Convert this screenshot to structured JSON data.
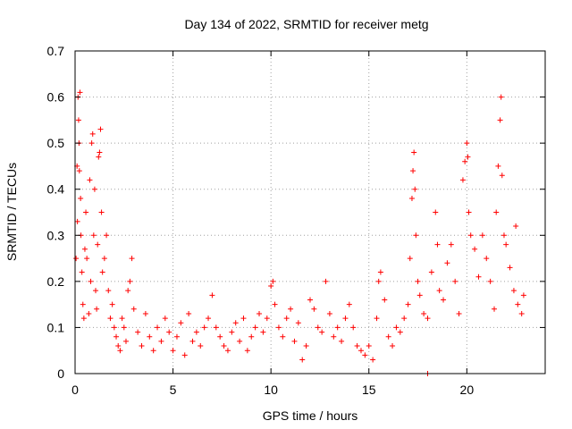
{
  "chart_data": {
    "type": "scatter",
    "title": "Day 134 of 2022, SRMTID for receiver metg",
    "xlabel": "GPS time / hours",
    "ylabel": "SRMTID / TECUs",
    "xlim": [
      0,
      24
    ],
    "ylim": [
      0,
      0.7
    ],
    "xticks": [
      0,
      5,
      10,
      15,
      20
    ],
    "yticks": [
      0,
      0.1,
      0.2,
      0.3,
      0.4,
      0.5,
      0.6,
      0.7
    ],
    "xtick_labels": [
      "0",
      "5",
      "10",
      "15",
      "20"
    ],
    "ytick_labels": [
      "0",
      "0.1",
      "0.2",
      "0.3",
      "0.4",
      "0.5",
      "0.6",
      "0.7"
    ],
    "grid": true,
    "marker": "+",
    "color": "#ff0000",
    "series": [
      {
        "name": "metg",
        "points": [
          [
            0.05,
            0.25
          ],
          [
            0.1,
            0.45
          ],
          [
            0.12,
            0.33
          ],
          [
            0.15,
            0.6
          ],
          [
            0.18,
            0.55
          ],
          [
            0.2,
            0.5
          ],
          [
            0.22,
            0.44
          ],
          [
            0.25,
            0.61
          ],
          [
            0.28,
            0.38
          ],
          [
            0.3,
            0.3
          ],
          [
            0.35,
            0.22
          ],
          [
            0.4,
            0.15
          ],
          [
            0.45,
            0.12
          ],
          [
            0.5,
            0.27
          ],
          [
            0.55,
            0.35
          ],
          [
            0.6,
            0.25
          ],
          [
            0.7,
            0.13
          ],
          [
            0.75,
            0.42
          ],
          [
            0.8,
            0.2
          ],
          [
            0.85,
            0.5
          ],
          [
            0.9,
            0.52
          ],
          [
            0.95,
            0.3
          ],
          [
            1.0,
            0.4
          ],
          [
            1.05,
            0.18
          ],
          [
            1.1,
            0.14
          ],
          [
            1.15,
            0.28
          ],
          [
            1.2,
            0.47
          ],
          [
            1.25,
            0.48
          ],
          [
            1.3,
            0.53
          ],
          [
            1.35,
            0.35
          ],
          [
            1.4,
            0.22
          ],
          [
            1.5,
            0.25
          ],
          [
            1.6,
            0.3
          ],
          [
            1.7,
            0.18
          ],
          [
            1.8,
            0.12
          ],
          [
            1.9,
            0.15
          ],
          [
            2.0,
            0.1
          ],
          [
            2.1,
            0.08
          ],
          [
            2.2,
            0.06
          ],
          [
            2.3,
            0.05
          ],
          [
            2.4,
            0.12
          ],
          [
            2.5,
            0.1
          ],
          [
            2.6,
            0.07
          ],
          [
            2.7,
            0.18
          ],
          [
            2.8,
            0.2
          ],
          [
            2.9,
            0.25
          ],
          [
            3.0,
            0.14
          ],
          [
            3.2,
            0.09
          ],
          [
            3.4,
            0.06
          ],
          [
            3.6,
            0.13
          ],
          [
            3.8,
            0.08
          ],
          [
            4.0,
            0.05
          ],
          [
            4.2,
            0.1
          ],
          [
            4.4,
            0.07
          ],
          [
            4.6,
            0.12
          ],
          [
            4.8,
            0.09
          ],
          [
            5.0,
            0.05
          ],
          [
            5.2,
            0.08
          ],
          [
            5.4,
            0.11
          ],
          [
            5.6,
            0.04
          ],
          [
            5.8,
            0.13
          ],
          [
            6.0,
            0.07
          ],
          [
            6.2,
            0.09
          ],
          [
            6.4,
            0.06
          ],
          [
            6.6,
            0.1
          ],
          [
            6.8,
            0.12
          ],
          [
            7.0,
            0.17
          ],
          [
            7.2,
            0.1
          ],
          [
            7.4,
            0.08
          ],
          [
            7.6,
            0.06
          ],
          [
            7.8,
            0.05
          ],
          [
            8.0,
            0.09
          ],
          [
            8.2,
            0.11
          ],
          [
            8.4,
            0.07
          ],
          [
            8.6,
            0.12
          ],
          [
            8.8,
            0.05
          ],
          [
            9.0,
            0.08
          ],
          [
            9.2,
            0.1
          ],
          [
            9.4,
            0.13
          ],
          [
            9.6,
            0.09
          ],
          [
            9.8,
            0.12
          ],
          [
            10.0,
            0.19
          ],
          [
            10.1,
            0.2
          ],
          [
            10.2,
            0.15
          ],
          [
            10.4,
            0.1
          ],
          [
            10.6,
            0.08
          ],
          [
            10.8,
            0.12
          ],
          [
            11.0,
            0.14
          ],
          [
            11.2,
            0.07
          ],
          [
            11.4,
            0.11
          ],
          [
            11.6,
            0.03
          ],
          [
            11.8,
            0.06
          ],
          [
            12.0,
            0.16
          ],
          [
            12.2,
            0.14
          ],
          [
            12.4,
            0.1
          ],
          [
            12.6,
            0.09
          ],
          [
            12.8,
            0.2
          ],
          [
            13.0,
            0.13
          ],
          [
            13.2,
            0.08
          ],
          [
            13.4,
            0.1
          ],
          [
            13.6,
            0.07
          ],
          [
            13.8,
            0.12
          ],
          [
            14.0,
            0.15
          ],
          [
            14.2,
            0.1
          ],
          [
            14.4,
            0.06
          ],
          [
            14.6,
            0.05
          ],
          [
            14.8,
            0.04
          ],
          [
            15.0,
            0.06
          ],
          [
            15.2,
            0.03
          ],
          [
            15.4,
            0.12
          ],
          [
            15.5,
            0.2
          ],
          [
            15.6,
            0.22
          ],
          [
            15.8,
            0.16
          ],
          [
            16.0,
            0.08
          ],
          [
            16.2,
            0.06
          ],
          [
            16.4,
            0.1
          ],
          [
            16.6,
            0.09
          ],
          [
            16.8,
            0.12
          ],
          [
            17.0,
            0.15
          ],
          [
            17.1,
            0.25
          ],
          [
            17.2,
            0.38
          ],
          [
            17.25,
            0.44
          ],
          [
            17.3,
            0.48
          ],
          [
            17.35,
            0.4
          ],
          [
            17.4,
            0.3
          ],
          [
            17.5,
            0.2
          ],
          [
            17.6,
            0.17
          ],
          [
            17.8,
            0.13
          ],
          [
            18.0,
            0.12
          ],
          [
            18.0,
            0.0
          ],
          [
            18.2,
            0.22
          ],
          [
            18.4,
            0.35
          ],
          [
            18.5,
            0.28
          ],
          [
            18.6,
            0.18
          ],
          [
            18.8,
            0.16
          ],
          [
            19.0,
            0.24
          ],
          [
            19.2,
            0.28
          ],
          [
            19.4,
            0.2
          ],
          [
            19.6,
            0.13
          ],
          [
            19.8,
            0.42
          ],
          [
            19.9,
            0.46
          ],
          [
            20.0,
            0.5
          ],
          [
            20.05,
            0.47
          ],
          [
            20.1,
            0.35
          ],
          [
            20.2,
            0.3
          ],
          [
            20.4,
            0.27
          ],
          [
            20.6,
            0.21
          ],
          [
            20.8,
            0.3
          ],
          [
            21.0,
            0.25
          ],
          [
            21.2,
            0.2
          ],
          [
            21.4,
            0.14
          ],
          [
            21.5,
            0.35
          ],
          [
            21.6,
            0.45
          ],
          [
            21.7,
            0.55
          ],
          [
            21.75,
            0.6
          ],
          [
            21.8,
            0.43
          ],
          [
            21.9,
            0.3
          ],
          [
            22.0,
            0.28
          ],
          [
            22.2,
            0.23
          ],
          [
            22.4,
            0.18
          ],
          [
            22.5,
            0.32
          ],
          [
            22.6,
            0.15
          ],
          [
            22.8,
            0.13
          ],
          [
            22.9,
            0.17
          ]
        ]
      }
    ]
  }
}
